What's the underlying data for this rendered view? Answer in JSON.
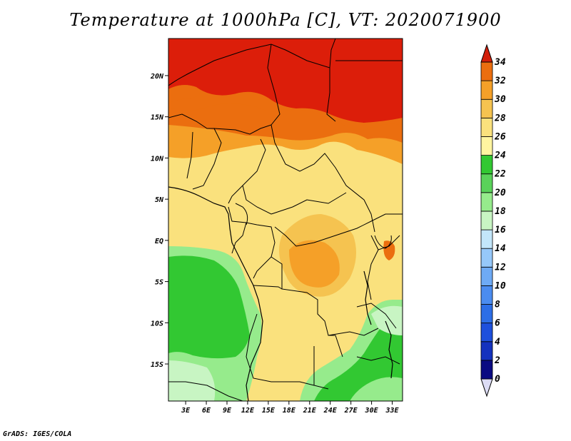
{
  "title": "Temperature at 1000hPa [C], VT: 2020071900",
  "footer": "GrADS: IGES/COLA",
  "map": {
    "lat_labels": [
      "20N",
      "15N",
      "10N",
      "5N",
      "EQ",
      "5S",
      "10S",
      "15S"
    ],
    "lat_values": [
      20,
      15,
      10,
      5,
      0,
      -5,
      -10,
      -15
    ],
    "lon_labels": [
      "3E",
      "6E",
      "9E",
      "12E",
      "15E",
      "18E",
      "21E",
      "24E",
      "27E",
      "30E",
      "33E"
    ],
    "lon_values": [
      3,
      6,
      9,
      12,
      15,
      18,
      21,
      24,
      27,
      30,
      33
    ],
    "lon_range": [
      0.5,
      34.5
    ],
    "lat_range": [
      -19.5,
      24.5
    ]
  },
  "colorbar": {
    "levels": [
      "0",
      "2",
      "4",
      "6",
      "8",
      "10",
      "12",
      "14",
      "16",
      "18",
      "20",
      "22",
      "24",
      "26",
      "28",
      "30",
      "32",
      "34"
    ],
    "colors": [
      "#0a0a82",
      "#1432be",
      "#1e50dc",
      "#2d6ee6",
      "#4b8cf0",
      "#6eaaf5",
      "#96c8fa",
      "#c3e6fa",
      "#c8f5c3",
      "#96eb8c",
      "#5ad25a",
      "#32c832",
      "#fff5a0",
      "#fae17d",
      "#f5c350",
      "#f5a028",
      "#eb6e0f",
      "#dc1e0a"
    ],
    "under_color": "#dcdcf5",
    "over_color": "#d21e0a"
  }
}
